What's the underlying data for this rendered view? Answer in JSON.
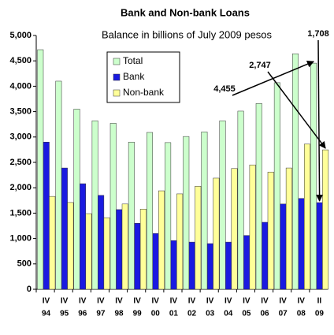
{
  "chart_data": {
    "type": "bar",
    "title": "Bank and Non-bank Loans",
    "subtitle": "Balance in billions of July 2009 pesos",
    "categories": [
      [
        "IV",
        "94"
      ],
      [
        "IV",
        "95"
      ],
      [
        "IV",
        "96"
      ],
      [
        "IV",
        "97"
      ],
      [
        "IV",
        "98"
      ],
      [
        "IV",
        "99"
      ],
      [
        "IV",
        "00"
      ],
      [
        "IV",
        "01"
      ],
      [
        "IV",
        "02"
      ],
      [
        "IV",
        "03"
      ],
      [
        "IV",
        "04"
      ],
      [
        "IV",
        "05"
      ],
      [
        "IV",
        "06"
      ],
      [
        "IV",
        "07"
      ],
      [
        "IV",
        "08"
      ],
      [
        "II",
        "09"
      ]
    ],
    "series": [
      {
        "name": "Total",
        "color": "#ccffcc",
        "values": [
          4720,
          4100,
          3550,
          3320,
          3270,
          2900,
          3090,
          2890,
          3010,
          3100,
          3320,
          3510,
          3660,
          4070,
          4640,
          4455
        ],
        "value_labels": [
          null,
          null,
          null,
          null,
          null,
          null,
          null,
          null,
          null,
          null,
          null,
          null,
          null,
          null,
          null,
          "4,455"
        ]
      },
      {
        "name": "Bank",
        "color": "#1a1ae0",
        "values": [
          2900,
          2390,
          2080,
          1850,
          1570,
          1300,
          1100,
          960,
          930,
          900,
          930,
          1060,
          1320,
          1680,
          1790,
          1708
        ],
        "value_labels": [
          null,
          null,
          null,
          null,
          null,
          null,
          null,
          null,
          null,
          null,
          null,
          null,
          null,
          null,
          null,
          "1,708"
        ]
      },
      {
        "name": "Non-bank",
        "color": "#ffff99",
        "values": [
          1830,
          1710,
          1490,
          1410,
          1680,
          1580,
          1940,
          1880,
          2030,
          2190,
          2380,
          2450,
          2310,
          2390,
          2860,
          2747
        ],
        "value_labels": [
          null,
          null,
          null,
          null,
          null,
          null,
          null,
          null,
          null,
          null,
          null,
          null,
          null,
          null,
          null,
          "2,747"
        ]
      }
    ],
    "ylim": [
      0,
      5000
    ],
    "yticks": [
      0,
      500,
      {
        "value": 1000,
        "label": "1,000"
      },
      {
        "value": 1500,
        "label": "1,500"
      },
      {
        "value": 2000,
        "label": "2,000"
      },
      {
        "value": 2500,
        "label": "2,500"
      },
      {
        "value": 3000,
        "label": "3,000"
      },
      {
        "value": 3500,
        "label": "3,500"
      },
      {
        "value": 4000,
        "label": "4,000"
      },
      {
        "value": 4500,
        "label": "4,500"
      },
      {
        "value": 5000,
        "label": "5,000"
      }
    ],
    "legend": "top-left"
  }
}
